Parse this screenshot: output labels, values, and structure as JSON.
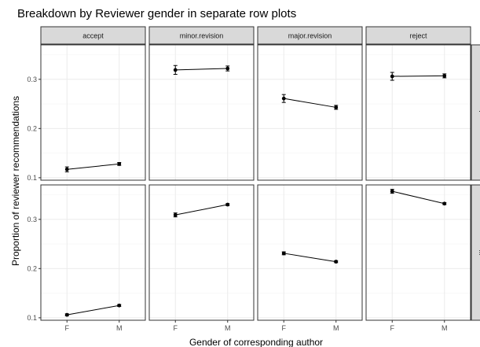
{
  "chart_data": {
    "type": "line",
    "title": "Breakdown by Reviewer gender in separate row plots",
    "xlabel": "Gender of corresponding author",
    "ylabel": "Proportion of reviewer recommendations",
    "x_categories": [
      "F",
      "M"
    ],
    "facet_columns": [
      "accept",
      "minor.revision",
      "major.revision",
      "reject"
    ],
    "facet_rows": [
      "F",
      "M"
    ],
    "ylim": [
      0.095,
      0.37
    ],
    "y_ticks": [
      0.1,
      0.2,
      0.3
    ],
    "y_tick_labels": [
      "0.1",
      "0.2",
      "0.3"
    ],
    "grid": true,
    "panels": [
      {
        "row": 0,
        "col": 0,
        "values": [
          0.117,
          0.128
        ],
        "err": [
          0.005,
          0.003
        ]
      },
      {
        "row": 0,
        "col": 1,
        "values": [
          0.319,
          0.322
        ],
        "err": [
          0.009,
          0.005
        ]
      },
      {
        "row": 0,
        "col": 2,
        "values": [
          0.261,
          0.243
        ],
        "err": [
          0.008,
          0.004
        ]
      },
      {
        "row": 0,
        "col": 3,
        "values": [
          0.306,
          0.307
        ],
        "err": [
          0.008,
          0.004
        ]
      },
      {
        "row": 1,
        "col": 0,
        "values": [
          0.106,
          0.125
        ],
        "err": [
          0.002,
          0.002
        ]
      },
      {
        "row": 1,
        "col": 1,
        "values": [
          0.309,
          0.33
        ],
        "err": [
          0.004,
          0.002
        ]
      },
      {
        "row": 1,
        "col": 2,
        "values": [
          0.231,
          0.214
        ],
        "err": [
          0.003,
          0.002
        ]
      },
      {
        "row": 1,
        "col": 3,
        "values": [
          0.357,
          0.332
        ],
        "err": [
          0.004,
          0.002
        ]
      }
    ]
  }
}
